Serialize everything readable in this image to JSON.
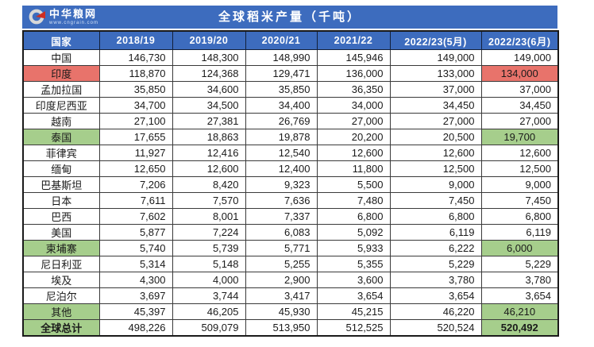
{
  "brand": {
    "name": "中华粮网",
    "url": "www.cngrain.com"
  },
  "title": "全球稻米产量（千吨）",
  "colors": {
    "header_blue": "#3d6cbe",
    "highlight_red": "#e8736b",
    "highlight_green": "#a6ce8c",
    "logo_ring_gray": "#d8d8d8",
    "logo_red": "#cf2e21",
    "title_text": "#ffffff",
    "body_text": "#1a1a1a"
  },
  "table": {
    "columns": [
      "国家",
      "2018/19",
      "2019/20",
      "2020/21",
      "2021/22",
      "2022/23(5月)",
      "2022/23(6月)"
    ],
    "rows": [
      {
        "country": "中国",
        "values": [
          "146,730",
          "148,300",
          "148,990",
          "145,946",
          "149,000",
          "149,000"
        ],
        "hl": null,
        "total": false
      },
      {
        "country": "印度",
        "values": [
          "118,870",
          "124,368",
          "129,471",
          "136,000",
          "133,000",
          "134,000"
        ],
        "hl": "red",
        "total": false
      },
      {
        "country": "孟加拉国",
        "values": [
          "35,850",
          "34,600",
          "35,850",
          "36,350",
          "37,000",
          "37,000"
        ],
        "hl": null,
        "total": false
      },
      {
        "country": "印度尼西亚",
        "values": [
          "34,700",
          "34,500",
          "34,400",
          "34,000",
          "34,450",
          "34,450"
        ],
        "hl": null,
        "total": false
      },
      {
        "country": "越南",
        "values": [
          "27,100",
          "27,381",
          "26,769",
          "27,000",
          "27,000",
          "27,000"
        ],
        "hl": null,
        "total": false
      },
      {
        "country": "泰国",
        "values": [
          "17,655",
          "18,863",
          "19,878",
          "20,200",
          "20,500",
          "19,700"
        ],
        "hl": "green",
        "total": false
      },
      {
        "country": "菲律宾",
        "values": [
          "11,927",
          "12,416",
          "12,540",
          "12,600",
          "12,600",
          "12,600"
        ],
        "hl": null,
        "total": false
      },
      {
        "country": "缅甸",
        "values": [
          "12,650",
          "12,600",
          "12,400",
          "11,800",
          "12,500",
          "12,500"
        ],
        "hl": null,
        "total": false
      },
      {
        "country": "巴基斯坦",
        "values": [
          "7,206",
          "8,420",
          "9,323",
          "5,500",
          "9,000",
          "9,000"
        ],
        "hl": null,
        "total": false
      },
      {
        "country": "日本",
        "values": [
          "7,611",
          "7,570",
          "7,636",
          "7,480",
          "7,450",
          "7,450"
        ],
        "hl": null,
        "total": false
      },
      {
        "country": "巴西",
        "values": [
          "7,602",
          "8,001",
          "7,337",
          "6,800",
          "6,800",
          "6,800"
        ],
        "hl": null,
        "total": false
      },
      {
        "country": "美国",
        "values": [
          "5,877",
          "7,224",
          "6,083",
          "5,092",
          "6,119",
          "6,119"
        ],
        "hl": null,
        "total": false
      },
      {
        "country": "柬埔寨",
        "values": [
          "5,740",
          "5,739",
          "5,771",
          "5,933",
          "6,222",
          "6,000"
        ],
        "hl": "green",
        "total": false
      },
      {
        "country": "尼日利亚",
        "values": [
          "5,314",
          "5,148",
          "5,255",
          "5,355",
          "5,229",
          "5,229"
        ],
        "hl": null,
        "total": false
      },
      {
        "country": "埃及",
        "values": [
          "4,300",
          "4,000",
          "2,900",
          "3,600",
          "3,780",
          "3,780"
        ],
        "hl": null,
        "total": false
      },
      {
        "country": "尼泊尔",
        "values": [
          "3,697",
          "3,744",
          "3,417",
          "3,654",
          "3,654",
          "3,654"
        ],
        "hl": null,
        "total": false
      },
      {
        "country": "其他",
        "values": [
          "45,397",
          "46,205",
          "45,930",
          "45,215",
          "46,220",
          "46,210"
        ],
        "hl": "green",
        "total": false
      },
      {
        "country": "全球总计",
        "values": [
          "498,226",
          "509,079",
          "513,950",
          "512,525",
          "520,524",
          "520,492"
        ],
        "hl": "green",
        "total": true
      }
    ]
  },
  "chart_data": {
    "type": "table",
    "title": "全球稻米产量（千吨）",
    "columns": [
      "国家",
      "2018/19",
      "2019/20",
      "2020/21",
      "2021/22",
      "2022/23(5月)",
      "2022/23(6月)"
    ],
    "unit": "千吨",
    "rows": [
      {
        "country": "中国",
        "values": [
          146730,
          148300,
          148990,
          145946,
          149000,
          149000
        ]
      },
      {
        "country": "印度",
        "values": [
          118870,
          124368,
          129471,
          136000,
          133000,
          134000
        ]
      },
      {
        "country": "孟加拉国",
        "values": [
          35850,
          34600,
          35850,
          36350,
          37000,
          37000
        ]
      },
      {
        "country": "印度尼西亚",
        "values": [
          34700,
          34500,
          34400,
          34000,
          34450,
          34450
        ]
      },
      {
        "country": "越南",
        "values": [
          27100,
          27381,
          26769,
          27000,
          27000,
          27000
        ]
      },
      {
        "country": "泰国",
        "values": [
          17655,
          18863,
          19878,
          20200,
          20500,
          19700
        ]
      },
      {
        "country": "菲律宾",
        "values": [
          11927,
          12416,
          12540,
          12600,
          12600,
          12600
        ]
      },
      {
        "country": "缅甸",
        "values": [
          12650,
          12600,
          12400,
          11800,
          12500,
          12500
        ]
      },
      {
        "country": "巴基斯坦",
        "values": [
          7206,
          8420,
          9323,
          5500,
          9000,
          9000
        ]
      },
      {
        "country": "日本",
        "values": [
          7611,
          7570,
          7636,
          7480,
          7450,
          7450
        ]
      },
      {
        "country": "巴西",
        "values": [
          7602,
          8001,
          7337,
          6800,
          6800,
          6800
        ]
      },
      {
        "country": "美国",
        "values": [
          5877,
          7224,
          6083,
          5092,
          6119,
          6119
        ]
      },
      {
        "country": "柬埔寨",
        "values": [
          5740,
          5739,
          5771,
          5933,
          6222,
          6000
        ]
      },
      {
        "country": "尼日利亚",
        "values": [
          5314,
          5148,
          5255,
          5355,
          5229,
          5229
        ]
      },
      {
        "country": "埃及",
        "values": [
          4300,
          4000,
          2900,
          3600,
          3780,
          3780
        ]
      },
      {
        "country": "尼泊尔",
        "values": [
          3697,
          3744,
          3417,
          3654,
          3654,
          3654
        ]
      },
      {
        "country": "其他",
        "values": [
          45397,
          46205,
          45930,
          45215,
          46220,
          46210
        ]
      },
      {
        "country": "全球总计",
        "values": [
          498226,
          509079,
          513950,
          512525,
          520524,
          520492
        ]
      }
    ],
    "highlights": {
      "red_rows": [
        "印度"
      ],
      "green_rows": [
        "泰国",
        "柬埔寨",
        "其他",
        "全球总计"
      ],
      "note": "highlight applies to country cell and 2022/23(6月) cell"
    }
  }
}
